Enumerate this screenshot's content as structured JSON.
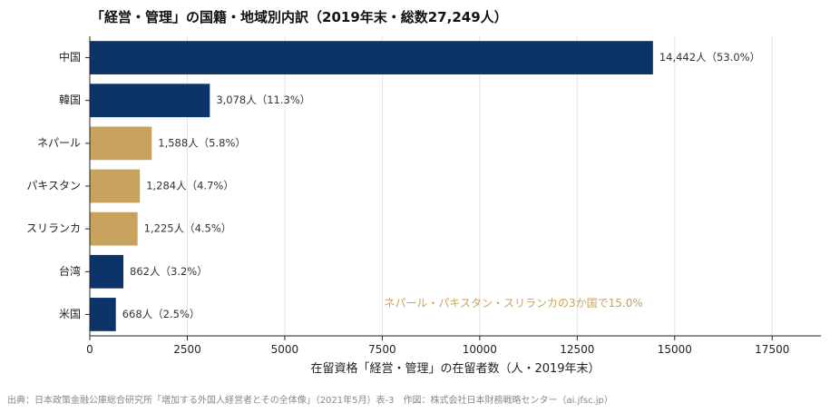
{
  "chart_data": {
    "type": "bar",
    "orientation": "horizontal",
    "title": "「経営・管理」の国籍・地域別内訳（2019年末・総数27,249人）",
    "xlabel": "在留資格「経営・管理」の在留者数（人・2019年末）",
    "ylabel": "",
    "xlim": [
      0,
      18750
    ],
    "xticks": [
      0,
      2500,
      5000,
      7500,
      10000,
      12500,
      15000,
      17500
    ],
    "xtick_labels": [
      "0",
      "2500",
      "5000",
      "7500",
      "10000",
      "12500",
      "15000",
      "17500"
    ],
    "grid": "vertical",
    "categories": [
      "中国",
      "韓国",
      "ネパール",
      "パキスタン",
      "スリランカ",
      "台湾",
      "米国"
    ],
    "values": [
      14442,
      3078,
      1588,
      1284,
      1225,
      862,
      668
    ],
    "data_labels": [
      "14,442人（53.0%）",
      "3,078人（11.3%）",
      "1,588人（5.8%）",
      "1,284人（4.7%）",
      "1,225人（4.5%）",
      "862人（3.2%）",
      "668人（2.5%）"
    ],
    "bar_colors": [
      "#0d3468",
      "#0d3468",
      "#c8a35e",
      "#c8a35e",
      "#c8a35e",
      "#0d3468",
      "#0d3468"
    ],
    "annotations": [
      {
        "text": "ネパール・パキスタン・スリランカの3か国で15.0%",
        "color": "#c8a35e"
      }
    ]
  },
  "footer": {
    "source": "出典：日本政策金融公庫総合研究所「増加する外国人経営者とその全体像」（2021年5月）表-3　作図：株式会社日本財務戦略センター（ai.jfsc.jp）"
  }
}
